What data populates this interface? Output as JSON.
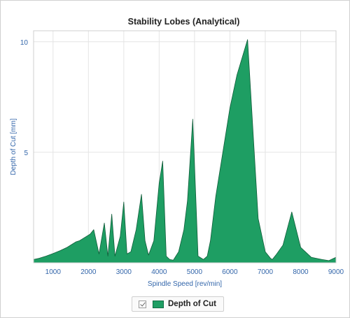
{
  "chart_data": {
    "type": "area",
    "title": "Stability Lobes (Analytical)",
    "xlabel": "Spindle Speed [rev/min]",
    "ylabel": "Depth of Cut [mm]",
    "xlim": [
      450,
      9000
    ],
    "ylim": [
      0,
      10.5
    ],
    "x_ticks": [
      1000,
      2000,
      3000,
      4000,
      5000,
      6000,
      7000,
      8000,
      9000
    ],
    "y_ticks": [
      5,
      10
    ],
    "grid": true,
    "legend_position": "bottom",
    "series": [
      {
        "name": "Depth of Cut",
        "color": "#1e9e63",
        "x": [
          450,
          600,
          800,
          1000,
          1200,
          1400,
          1550,
          1650,
          1750,
          1850,
          1950,
          2050,
          2150,
          2300,
          2450,
          2550,
          2660,
          2750,
          2900,
          3000,
          3090,
          3200,
          3350,
          3500,
          3600,
          3700,
          3850,
          4000,
          4100,
          4200,
          4300,
          4400,
          4550,
          4700,
          4800,
          4950,
          5100,
          5250,
          5360,
          5450,
          5600,
          5800,
          6000,
          6200,
          6500,
          6800,
          7000,
          7150,
          7200,
          7300,
          7500,
          7750,
          8000,
          8300,
          8600,
          8800,
          9000
        ],
        "y": [
          0.15,
          0.2,
          0.3,
          0.42,
          0.55,
          0.7,
          0.85,
          0.95,
          1.0,
          1.1,
          1.2,
          1.3,
          1.5,
          0.4,
          1.8,
          0.3,
          2.2,
          0.3,
          1.2,
          2.75,
          0.4,
          0.5,
          1.5,
          3.1,
          1.0,
          0.35,
          1.0,
          3.6,
          4.6,
          0.3,
          0.15,
          0.12,
          0.5,
          1.5,
          2.8,
          6.5,
          0.3,
          0.15,
          0.3,
          1.0,
          3.0,
          5.0,
          7.0,
          8.5,
          10.1,
          2.0,
          0.5,
          0.2,
          0.15,
          0.35,
          0.8,
          2.3,
          0.7,
          0.25,
          0.15,
          0.1,
          0.25
        ]
      }
    ]
  },
  "legend": {
    "label": "Depth of Cut",
    "checked": true
  }
}
